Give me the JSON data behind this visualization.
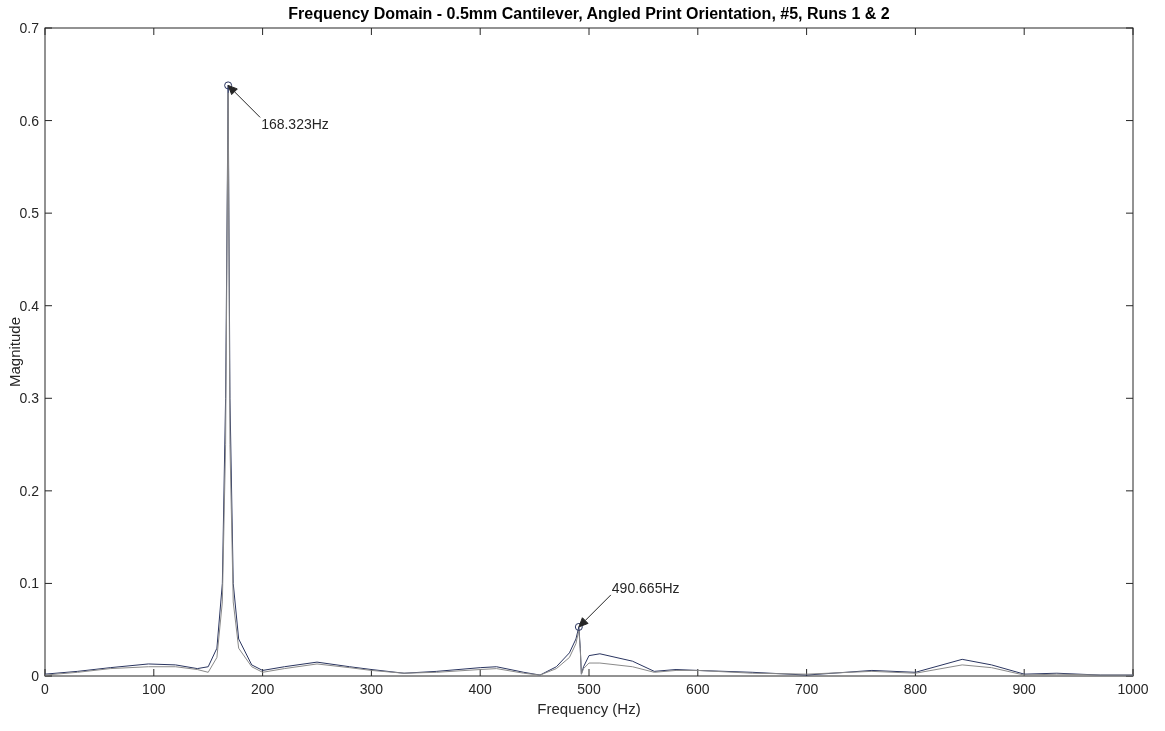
{
  "chart_data": {
    "type": "line",
    "title": "Frequency Domain - 0.5mm Cantilever, Angled Print Orientation, #5, Runs 1 & 2",
    "xlabel": "Frequency (Hz)",
    "ylabel": "Magnitude",
    "xlim": [
      0,
      1000
    ],
    "xticks": [
      0,
      100,
      200,
      300,
      400,
      500,
      600,
      700,
      800,
      900,
      1000
    ],
    "ylim": [
      0,
      0.7
    ],
    "yticks": [
      0,
      0.1,
      0.2,
      0.3,
      0.4,
      0.5,
      0.6,
      0.7
    ],
    "grid": false,
    "line_style": "solid",
    "marker": "none",
    "series": [
      {
        "color": "#2a3560",
        "x": [
          0,
          30,
          60,
          95,
          120,
          140,
          150,
          158,
          163,
          166,
          168.323,
          170,
          173,
          178,
          190,
          200,
          220,
          250,
          280,
          300,
          330,
          360,
          400,
          415,
          440,
          455,
          470,
          482,
          488,
          490.665,
          492,
          493,
          495,
          500,
          510,
          540,
          560,
          580,
          600,
          650,
          700,
          760,
          800,
          843,
          870,
          900,
          930,
          970,
          1000
        ],
        "values": [
          0.002,
          0.005,
          0.009,
          0.013,
          0.012,
          0.008,
          0.01,
          0.03,
          0.1,
          0.3,
          0.638,
          0.3,
          0.1,
          0.04,
          0.012,
          0.006,
          0.01,
          0.015,
          0.01,
          0.007,
          0.003,
          0.005,
          0.009,
          0.01,
          0.004,
          0.001,
          0.01,
          0.025,
          0.04,
          0.053,
          0.03,
          0.002,
          0.01,
          0.022,
          0.024,
          0.016,
          0.005,
          0.007,
          0.006,
          0.004,
          0.001,
          0.006,
          0.004,
          0.018,
          0.012,
          0.002,
          0.003,
          0.001,
          0.001
        ]
      },
      {
        "color": "#8a8a8a",
        "x": [
          0,
          30,
          60,
          95,
          120,
          140,
          150,
          158,
          163,
          166,
          168.323,
          170,
          173,
          178,
          190,
          200,
          220,
          250,
          280,
          300,
          330,
          360,
          400,
          415,
          440,
          455,
          470,
          482,
          488,
          490.665,
          492,
          493,
          495,
          500,
          510,
          540,
          560,
          580,
          600,
          650,
          700,
          760,
          800,
          843,
          870,
          900,
          930,
          970,
          1000
        ],
        "values": [
          0.001,
          0.004,
          0.008,
          0.01,
          0.01,
          0.007,
          0.004,
          0.02,
          0.08,
          0.25,
          0.63,
          0.25,
          0.08,
          0.03,
          0.01,
          0.004,
          0.008,
          0.013,
          0.009,
          0.006,
          0.003,
          0.004,
          0.007,
          0.008,
          0.003,
          0.001,
          0.008,
          0.02,
          0.035,
          0.05,
          0.028,
          0.002,
          0.008,
          0.014,
          0.014,
          0.01,
          0.004,
          0.006,
          0.006,
          0.003,
          0.002,
          0.005,
          0.003,
          0.012,
          0.009,
          0.001,
          0.002,
          0.001,
          0.001
        ]
      },
      {
        "type": "scatter",
        "marker": "circle",
        "color": "#2a3560",
        "x": [
          168.323,
          490.665
        ],
        "values": [
          0.638,
          0.053
        ]
      }
    ],
    "annotations": [
      "168.323Hz",
      "490.665Hz"
    ]
  }
}
